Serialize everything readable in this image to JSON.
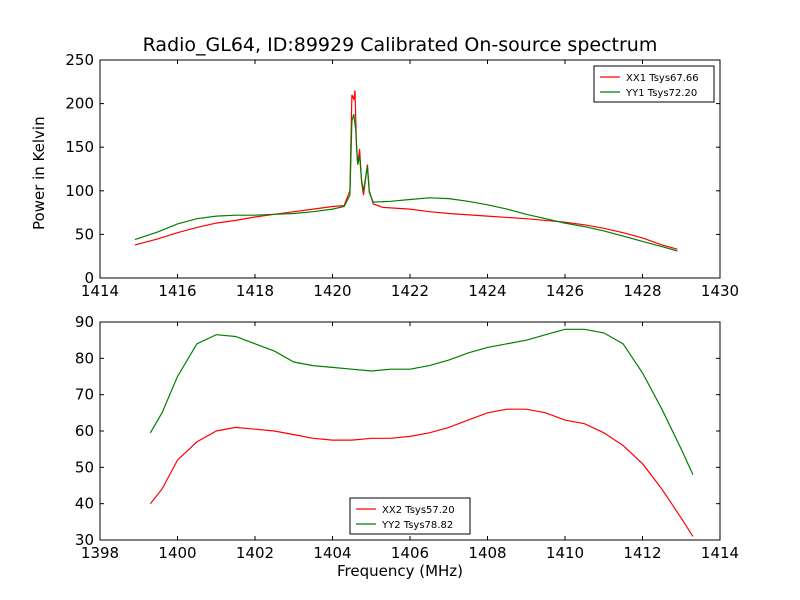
{
  "title": "Radio_GL64, ID:89929 Calibrated On-source spectrum",
  "chart_data": [
    {
      "type": "line",
      "ylabel": "Power in Kelvin",
      "xlabel": "",
      "xlim": [
        1414,
        1430
      ],
      "ylim": [
        0,
        250
      ],
      "xticks": [
        1414,
        1416,
        1418,
        1420,
        1422,
        1424,
        1426,
        1428,
        1430
      ],
      "yticks": [
        0,
        50,
        100,
        150,
        200,
        250
      ],
      "legend_position": "top-right",
      "series": [
        {
          "name": "XX1 Tsys67.66",
          "color": "#ff0000",
          "points": [
            [
              1414.9,
              38
            ],
            [
              1415.5,
              45
            ],
            [
              1416,
              52
            ],
            [
              1416.5,
              58
            ],
            [
              1417,
              63
            ],
            [
              1417.5,
              66
            ],
            [
              1418,
              70
            ],
            [
              1418.5,
              73
            ],
            [
              1419,
              76
            ],
            [
              1419.5,
              79
            ],
            [
              1420,
              82
            ],
            [
              1420.3,
              83
            ],
            [
              1420.45,
              100
            ],
            [
              1420.5,
              210
            ],
            [
              1420.55,
              205
            ],
            [
              1420.58,
              215
            ],
            [
              1420.62,
              150
            ],
            [
              1420.65,
              130
            ],
            [
              1420.7,
              148
            ],
            [
              1420.75,
              110
            ],
            [
              1420.8,
              95
            ],
            [
              1420.9,
              130
            ],
            [
              1420.95,
              100
            ],
            [
              1421.05,
              85
            ],
            [
              1421.3,
              81
            ],
            [
              1422,
              79
            ],
            [
              1422.5,
              76
            ],
            [
              1423,
              74
            ],
            [
              1424,
              71
            ],
            [
              1425,
              68
            ],
            [
              1426,
              64
            ],
            [
              1426.5,
              61
            ],
            [
              1427,
              57
            ],
            [
              1427.5,
              52
            ],
            [
              1428,
              46
            ],
            [
              1428.5,
              38
            ],
            [
              1428.9,
              33
            ]
          ]
        },
        {
          "name": "YY1 Tsys72.20",
          "color": "#007f00",
          "points": [
            [
              1414.9,
              44
            ],
            [
              1415.5,
              53
            ],
            [
              1416,
              62
            ],
            [
              1416.5,
              68
            ],
            [
              1417,
              71
            ],
            [
              1417.5,
              72
            ],
            [
              1418,
              72
            ],
            [
              1418.5,
              73
            ],
            [
              1419,
              74
            ],
            [
              1419.5,
              76
            ],
            [
              1420,
              79
            ],
            [
              1420.3,
              82
            ],
            [
              1420.45,
              95
            ],
            [
              1420.5,
              180
            ],
            [
              1420.55,
              188
            ],
            [
              1420.6,
              170
            ],
            [
              1420.65,
              130
            ],
            [
              1420.7,
              140
            ],
            [
              1420.75,
              112
            ],
            [
              1420.8,
              100
            ],
            [
              1420.9,
              128
            ],
            [
              1420.95,
              98
            ],
            [
              1421.05,
              87
            ],
            [
              1421.5,
              88
            ],
            [
              1422,
              90
            ],
            [
              1422.5,
              92
            ],
            [
              1423,
              91
            ],
            [
              1423.5,
              88
            ],
            [
              1424,
              84
            ],
            [
              1424.5,
              79
            ],
            [
              1425,
              73
            ],
            [
              1425.5,
              68
            ],
            [
              1426,
              63
            ],
            [
              1426.5,
              59
            ],
            [
              1427,
              54
            ],
            [
              1427.5,
              48
            ],
            [
              1428,
              42
            ],
            [
              1428.5,
              36
            ],
            [
              1428.9,
              31
            ]
          ]
        }
      ]
    },
    {
      "type": "line",
      "ylabel": "",
      "xlabel": "Frequency (MHz)",
      "xlim": [
        1398,
        1414
      ],
      "ylim": [
        30,
        90
      ],
      "xticks": [
        1398,
        1400,
        1402,
        1404,
        1406,
        1408,
        1410,
        1412,
        1414
      ],
      "yticks": [
        30,
        40,
        50,
        60,
        70,
        80,
        90
      ],
      "legend_position": "bottom-center",
      "series": [
        {
          "name": "XX2 Tsys57.20",
          "color": "#ff0000",
          "points": [
            [
              1399.3,
              40
            ],
            [
              1399.6,
              44
            ],
            [
              1400,
              52
            ],
            [
              1400.5,
              57
            ],
            [
              1401,
              60
            ],
            [
              1401.5,
              61
            ],
            [
              1402,
              60.5
            ],
            [
              1402.5,
              60
            ],
            [
              1403,
              59
            ],
            [
              1403.5,
              58
            ],
            [
              1404,
              57.5
            ],
            [
              1404.5,
              57.5
            ],
            [
              1405,
              58
            ],
            [
              1405.5,
              58
            ],
            [
              1406,
              58.5
            ],
            [
              1406.5,
              59.5
            ],
            [
              1407,
              61
            ],
            [
              1407.5,
              63
            ],
            [
              1408,
              65
            ],
            [
              1408.5,
              66
            ],
            [
              1409,
              66
            ],
            [
              1409.5,
              65
            ],
            [
              1410,
              63
            ],
            [
              1410.5,
              62
            ],
            [
              1411,
              59.5
            ],
            [
              1411.5,
              56
            ],
            [
              1412,
              51
            ],
            [
              1412.5,
              44
            ],
            [
              1413,
              36
            ],
            [
              1413.3,
              31
            ]
          ]
        },
        {
          "name": "YY2 Tsys78.82",
          "color": "#007f00",
          "points": [
            [
              1399.3,
              59.5
            ],
            [
              1399.6,
              65
            ],
            [
              1400,
              75
            ],
            [
              1400.5,
              84
            ],
            [
              1401,
              86.5
            ],
            [
              1401.5,
              86
            ],
            [
              1402,
              84
            ],
            [
              1402.5,
              82
            ],
            [
              1403,
              79
            ],
            [
              1403.5,
              78
            ],
            [
              1404,
              77.5
            ],
            [
              1404.5,
              77
            ],
            [
              1405,
              76.5
            ],
            [
              1405.5,
              77
            ],
            [
              1406,
              77
            ],
            [
              1406.5,
              78
            ],
            [
              1407,
              79.5
            ],
            [
              1407.5,
              81.5
            ],
            [
              1408,
              83
            ],
            [
              1408.5,
              84
            ],
            [
              1409,
              85
            ],
            [
              1409.5,
              86.5
            ],
            [
              1410,
              88
            ],
            [
              1410.5,
              88
            ],
            [
              1411,
              87
            ],
            [
              1411.5,
              84
            ],
            [
              1412,
              76
            ],
            [
              1412.5,
              66
            ],
            [
              1413,
              55
            ],
            [
              1413.3,
              48
            ]
          ]
        }
      ]
    }
  ]
}
